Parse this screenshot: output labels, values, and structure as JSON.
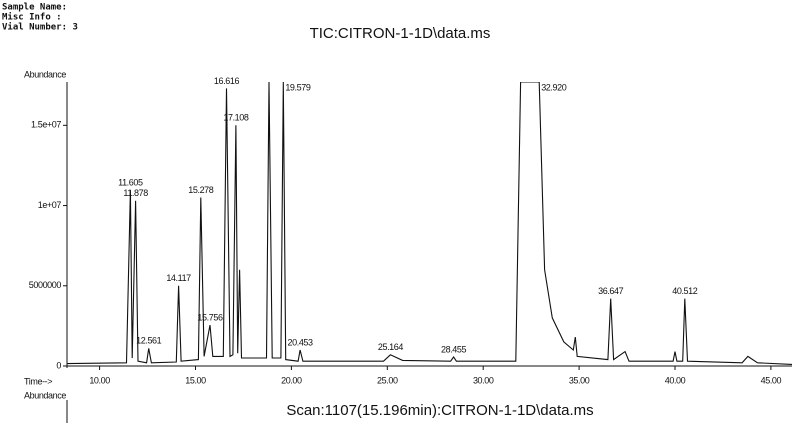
{
  "header": {
    "sample_name": "Sample Name:",
    "misc_info": "Misc Info  :",
    "vial_number": "Vial Number: 3"
  },
  "chart_data": {
    "type": "line",
    "title": "TIC:CITRON-1-1D\\data.ms",
    "ylabel": "Abundance",
    "xlabel": "Time-->",
    "footer_ylabel": "Abundance",
    "footer_title": "Scan:1107(15.196min):CITRON-1-1D\\data.ms",
    "color": "#111111",
    "xlim": [
      8.3,
      46.1
    ],
    "ylim": [
      0,
      17700000
    ],
    "xticks": [
      {
        "value": 10,
        "label": "10.00"
      },
      {
        "value": 15,
        "label": "15.00"
      },
      {
        "value": 20,
        "label": "20.00"
      },
      {
        "value": 25,
        "label": "25.00"
      },
      {
        "value": 30,
        "label": "30.00"
      },
      {
        "value": 35,
        "label": "35.00"
      },
      {
        "value": 40,
        "label": "40.00"
      },
      {
        "value": 45,
        "label": "45.00"
      }
    ],
    "yticks": [
      0,
      5000000,
      {
        "value": 10000000,
        "label": "1e+07"
      },
      {
        "value": 15000000,
        "label": "1.5e+07"
      }
    ],
    "x": [
      8.3,
      11.4,
      11.605,
      11.7,
      11.878,
      12.0,
      12.45,
      12.561,
      12.7,
      14.0,
      14.117,
      14.25,
      15.15,
      15.278,
      15.45,
      15.756,
      15.9,
      16.45,
      16.616,
      16.8,
      16.95,
      17.108,
      17.2,
      17.3,
      17.4,
      18.7,
      18.83,
      19.0,
      19.45,
      19.579,
      19.7,
      20.35,
      20.453,
      20.6,
      24.8,
      25.164,
      25.8,
      28.3,
      28.455,
      28.6,
      31.7,
      31.95,
      32.92,
      33.2,
      33.6,
      34.2,
      34.7,
      34.8,
      34.9,
      36.5,
      36.647,
      36.8,
      37.4,
      37.6,
      39.9,
      40.0,
      40.1,
      40.4,
      40.512,
      40.65,
      43.5,
      43.8,
      44.3,
      46.1
    ],
    "values": [
      150000,
      200000,
      10960000,
      500000,
      10300000,
      300000,
      200000,
      1100000,
      200000,
      250000,
      5000000,
      300000,
      400000,
      10500000,
      600000,
      2550000,
      600000,
      600000,
      17300000,
      600000,
      700000,
      15000000,
      800000,
      6000000,
      500000,
      500000,
      17700000,
      500000,
      500000,
      17700000,
      400000,
      300000,
      1000000,
      300000,
      300000,
      700000,
      350000,
      300000,
      560000,
      300000,
      300000,
      17700000,
      17700000,
      6000000,
      3000000,
      1500000,
      1000000,
      1800000,
      600000,
      400000,
      4200000,
      400000,
      900000,
      300000,
      300000,
      900000,
      300000,
      300000,
      4200000,
      300000,
      200000,
      600000,
      200000,
      100000
    ],
    "annotations": [
      {
        "x": 11.605,
        "y": 10960000,
        "label": "11.605"
      },
      {
        "x": 11.878,
        "y": 10300000,
        "label": "11.878"
      },
      {
        "x": 12.561,
        "y": 1100000,
        "label": "12.561"
      },
      {
        "x": 14.117,
        "y": 5000000,
        "label": "14.117"
      },
      {
        "x": 15.278,
        "y": 10500000,
        "label": "15.278"
      },
      {
        "x": 15.756,
        "y": 2550000,
        "label": "15.756"
      },
      {
        "x": 16.616,
        "y": 17300000,
        "label": "16.616"
      },
      {
        "x": 17.108,
        "y": 15000000,
        "label": "17.108"
      },
      {
        "x": 19.579,
        "y": 17700000,
        "label": "19.579"
      },
      {
        "x": 20.453,
        "y": 1000000,
        "label": "20.453"
      },
      {
        "x": 25.164,
        "y": 700000,
        "label": "25.164"
      },
      {
        "x": 28.455,
        "y": 560000,
        "label": "28.455"
      },
      {
        "x": 32.92,
        "y": 17700000,
        "label": "32.920"
      },
      {
        "x": 36.647,
        "y": 4200000,
        "label": "36.647"
      },
      {
        "x": 40.512,
        "y": 4200000,
        "label": "40.512"
      }
    ]
  }
}
